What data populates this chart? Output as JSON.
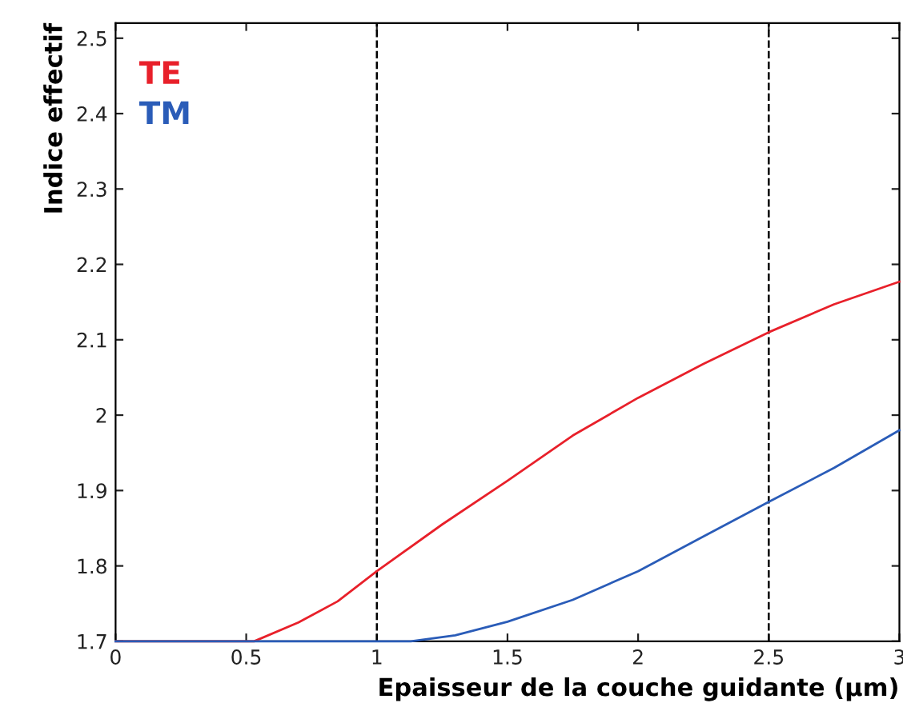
{
  "chart_data": {
    "type": "line",
    "xlabel": "Epaisseur de la couche guidante (µm)",
    "ylabel": "Indice effectif",
    "xlim": [
      0,
      3
    ],
    "ylim": [
      1.7,
      2.52
    ],
    "xticks": [
      0,
      0.5,
      1,
      1.5,
      2,
      2.5,
      3
    ],
    "yticks": [
      1.7,
      1.8,
      1.9,
      2,
      2.1,
      2.2,
      2.3,
      2.4,
      2.5
    ],
    "grid": false,
    "legend": "top left",
    "line_style": "solid",
    "marker": "none",
    "ref_lines": [
      {
        "axis": "x",
        "value": 1,
        "color": "#000000",
        "line_style": "dashed"
      },
      {
        "axis": "x",
        "value": 2.5,
        "color": "#000000",
        "line_style": "dashed"
      }
    ],
    "series": [
      {
        "name": "TE",
        "color": "#e8202a",
        "x": [
          0,
          0.53,
          0.7,
          0.85,
          1.0,
          1.25,
          1.5,
          1.75,
          2.0,
          2.25,
          2.5,
          2.75,
          3.0
        ],
        "values": [
          1.7,
          1.7,
          1.725,
          1.753,
          1.793,
          1.855,
          1.913,
          1.973,
          2.023,
          2.068,
          2.11,
          2.147,
          2.177
        ]
      },
      {
        "name": "TM",
        "color": "#2a5cb8",
        "x": [
          0,
          1.13,
          1.3,
          1.5,
          1.75,
          2.0,
          2.25,
          2.5,
          2.75,
          3.0
        ],
        "values": [
          1.7,
          1.7,
          1.708,
          1.726,
          1.755,
          1.793,
          1.839,
          1.885,
          1.93,
          1.98
        ]
      }
    ]
  }
}
